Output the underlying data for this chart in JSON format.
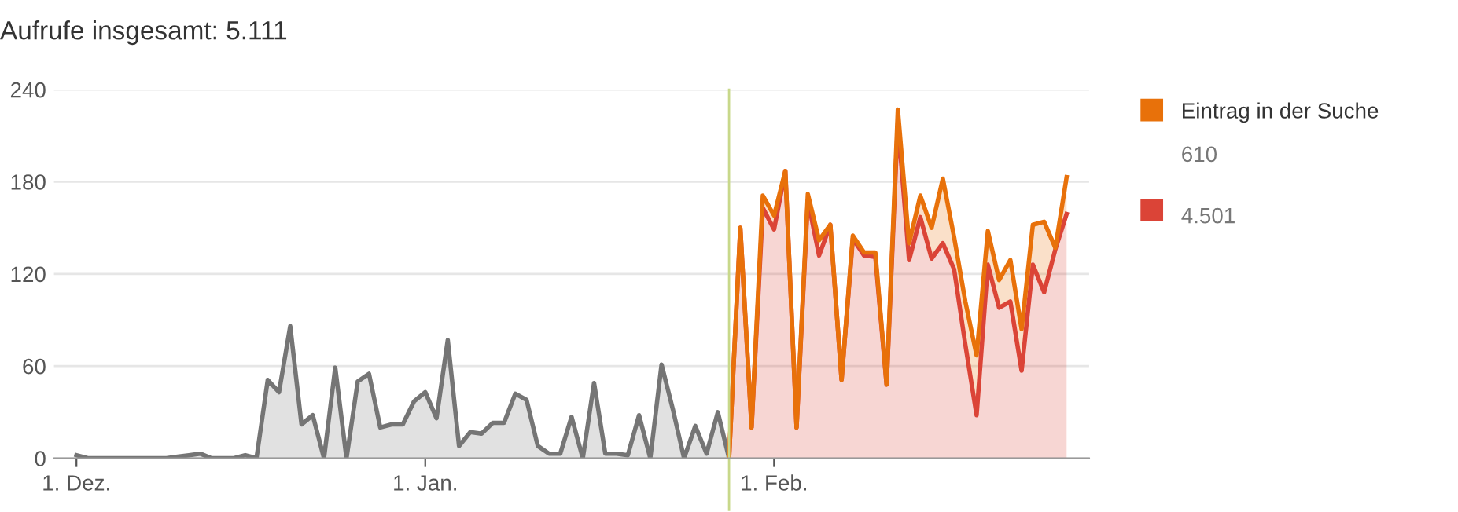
{
  "chart_data": {
    "type": "area",
    "title": "Aufrufe insgesamt: 5.111",
    "categories": [
      "1. Dez.",
      null,
      null,
      null,
      null,
      null,
      null,
      null,
      null,
      null,
      null,
      null,
      null,
      null,
      null,
      null,
      null,
      null,
      null,
      null,
      null,
      null,
      null,
      null,
      null,
      null,
      null,
      null,
      null,
      null,
      null,
      "1. Jan.",
      null,
      null,
      null,
      null,
      null,
      null,
      null,
      null,
      null,
      null,
      null,
      null,
      null,
      null,
      null,
      null,
      null,
      null,
      null,
      null,
      null,
      null,
      null,
      null,
      null,
      null,
      null,
      null,
      null,
      null,
      "1. Feb.",
      null,
      null,
      null,
      null,
      null,
      null,
      null,
      null,
      null,
      null,
      null,
      null,
      null,
      null,
      null,
      null,
      null,
      null,
      null,
      null,
      null,
      null,
      null,
      null,
      null,
      null
    ],
    "series": [
      {
        "color": "#757575",
        "values": [
          2,
          0,
          0,
          0,
          0,
          0,
          0,
          0,
          0,
          1,
          2,
          3,
          0,
          0,
          0,
          2,
          0,
          51,
          43,
          86,
          22,
          28,
          0,
          59,
          0,
          50,
          55,
          20,
          22,
          22,
          37,
          43,
          26,
          77,
          8,
          17,
          16,
          23,
          23,
          42,
          38,
          8,
          3,
          3,
          27,
          0,
          49,
          3,
          3,
          2,
          28,
          0,
          61,
          32,
          0,
          21,
          3,
          30,
          0,
          null,
          null,
          null,
          null,
          null,
          null,
          null,
          null,
          null,
          null,
          null,
          null,
          null,
          null,
          null,
          null,
          null,
          null,
          null,
          null,
          null,
          null,
          null,
          null,
          null,
          null,
          null,
          null,
          null,
          null
        ]
      },
      {
        "color": "#db4437",
        "values": [
          null,
          null,
          null,
          null,
          null,
          null,
          null,
          null,
          null,
          null,
          null,
          null,
          null,
          null,
          null,
          null,
          null,
          null,
          null,
          null,
          null,
          null,
          null,
          null,
          null,
          null,
          null,
          null,
          null,
          null,
          null,
          null,
          null,
          null,
          null,
          null,
          null,
          null,
          null,
          null,
          null,
          null,
          null,
          null,
          null,
          null,
          null,
          null,
          null,
          null,
          null,
          null,
          null,
          null,
          null,
          null,
          null,
          null,
          0,
          150,
          20,
          163,
          149,
          187,
          20,
          168,
          132,
          152,
          51,
          143,
          132,
          131,
          48,
          219,
          129,
          157,
          130,
          140,
          123,
          74,
          28,
          126,
          98,
          102,
          57,
          126,
          108,
          136,
          159
        ]
      },
      {
        "name": "Eintrag in der Suche",
        "color": "#e8710a",
        "values": [
          null,
          null,
          null,
          null,
          null,
          null,
          null,
          null,
          null,
          null,
          null,
          null,
          null,
          null,
          null,
          null,
          null,
          null,
          null,
          null,
          null,
          null,
          null,
          null,
          null,
          null,
          null,
          null,
          null,
          null,
          null,
          null,
          null,
          null,
          null,
          null,
          null,
          null,
          null,
          null,
          null,
          null,
          null,
          null,
          null,
          null,
          null,
          null,
          null,
          null,
          null,
          null,
          null,
          null,
          null,
          null,
          null,
          null,
          0,
          0,
          0,
          8,
          9,
          0,
          0,
          4,
          10,
          0,
          0,
          2,
          2,
          3,
          0,
          8,
          11,
          14,
          20,
          42,
          21,
          28,
          39,
          22,
          18,
          27,
          27,
          26,
          46,
          1,
          24
        ]
      }
    ],
    "stacked": true,
    "ylim": [
      0,
      240
    ],
    "yticks": [
      0,
      60,
      120,
      180,
      240
    ],
    "grid": "y",
    "legend": "right",
    "annotations": [
      "610",
      "4.501"
    ]
  }
}
